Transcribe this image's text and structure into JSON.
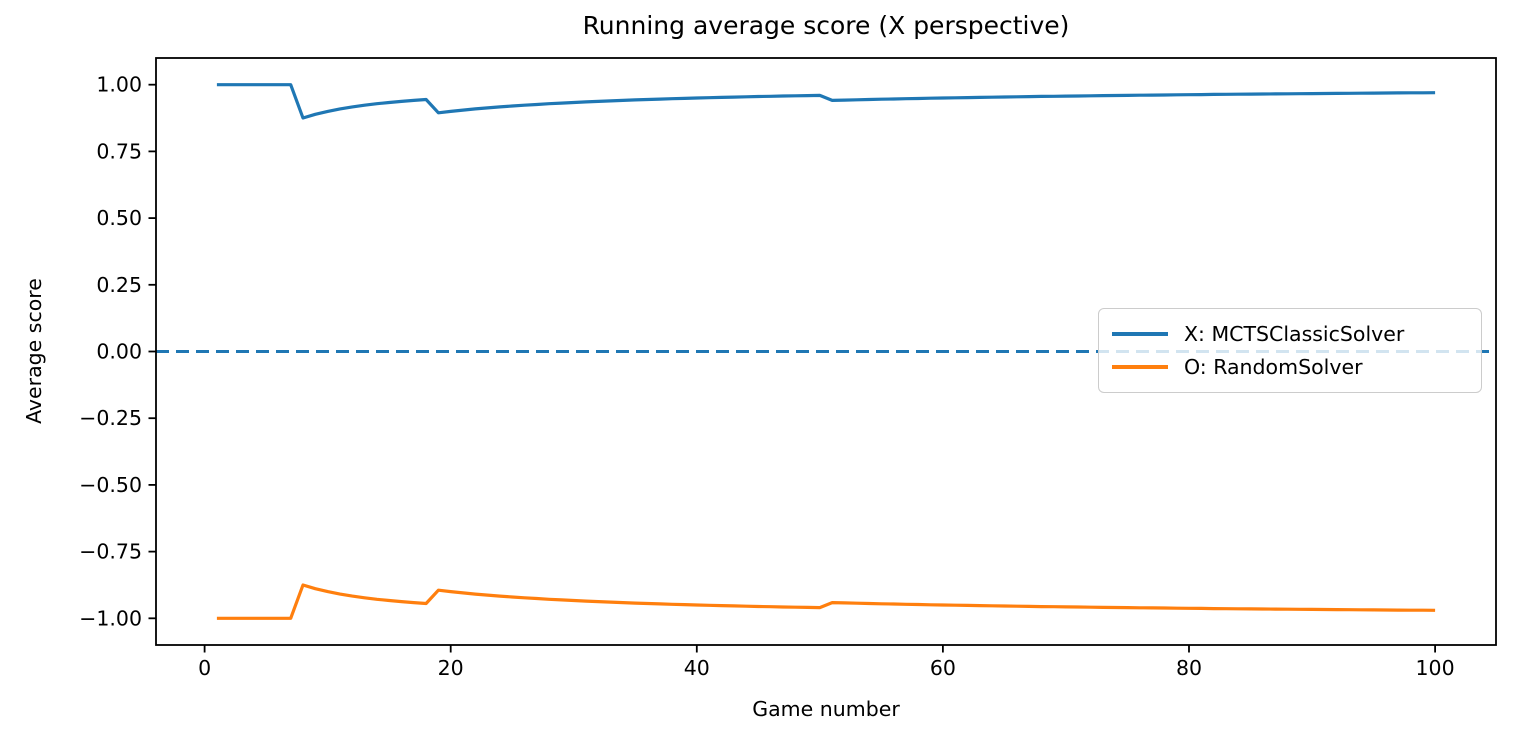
{
  "chart_data": {
    "type": "line",
    "title": "Running average score (X perspective)",
    "xlabel": "Game number",
    "ylabel": "Average score",
    "grid": false,
    "xlim": [
      -3.95,
      104.95
    ],
    "ylim": [
      -1.1,
      1.1
    ],
    "xticks": [
      0,
      20,
      40,
      60,
      80,
      100
    ],
    "xtick_labels": [
      "0",
      "20",
      "40",
      "60",
      "80",
      "100"
    ],
    "yticks": [
      1.0,
      0.75,
      0.5,
      0.25,
      0.0,
      -0.25,
      -0.5,
      -0.75,
      -1.0
    ],
    "ytick_labels": [
      "1.00",
      "0.75",
      "0.50",
      "0.25",
      "0.00",
      "−0.25",
      "−0.50",
      "−0.75",
      "−1.00"
    ],
    "zero_line": {
      "y": 0.0,
      "style": "dashed",
      "color": "#1f77b4"
    },
    "legend": {
      "position": "center right",
      "entries": [
        "X: MCTSClassicSolver",
        "O: RandomSolver"
      ]
    },
    "x": [
      1,
      2,
      3,
      4,
      5,
      6,
      7,
      8,
      9,
      10,
      11,
      12,
      13,
      14,
      15,
      16,
      17,
      18,
      19,
      20,
      21,
      22,
      23,
      24,
      25,
      26,
      27,
      28,
      29,
      30,
      31,
      32,
      33,
      34,
      35,
      36,
      37,
      38,
      39,
      40,
      41,
      42,
      43,
      44,
      45,
      46,
      47,
      48,
      49,
      50,
      51,
      52,
      53,
      54,
      55,
      56,
      57,
      58,
      59,
      60,
      61,
      62,
      63,
      64,
      65,
      66,
      67,
      68,
      69,
      70,
      71,
      72,
      73,
      74,
      75,
      76,
      77,
      78,
      79,
      80,
      81,
      82,
      83,
      84,
      85,
      86,
      87,
      88,
      89,
      90,
      91,
      92,
      93,
      94,
      95,
      96,
      97,
      98,
      99,
      100
    ],
    "series": [
      {
        "name": "X: MCTSClassicSolver",
        "color": "#1f77b4",
        "values": [
          1.0,
          1.0,
          1.0,
          1.0,
          1.0,
          1.0,
          1.0,
          0.875,
          0.8889,
          0.9,
          0.9091,
          0.9167,
          0.9231,
          0.9286,
          0.9333,
          0.9375,
          0.9412,
          0.9444,
          0.8947,
          0.9,
          0.9048,
          0.9091,
          0.913,
          0.9167,
          0.92,
          0.9231,
          0.9259,
          0.9286,
          0.931,
          0.9333,
          0.9355,
          0.9375,
          0.9394,
          0.9412,
          0.9429,
          0.9444,
          0.9459,
          0.9474,
          0.9487,
          0.95,
          0.9512,
          0.9524,
          0.9535,
          0.9545,
          0.9556,
          0.9565,
          0.9574,
          0.9583,
          0.9592,
          0.96,
          0.9412,
          0.9423,
          0.9434,
          0.9444,
          0.9455,
          0.9464,
          0.9474,
          0.9483,
          0.9492,
          0.95,
          0.9508,
          0.9516,
          0.9524,
          0.9531,
          0.9538,
          0.9545,
          0.9552,
          0.9559,
          0.9565,
          0.9571,
          0.9577,
          0.9583,
          0.9589,
          0.9595,
          0.96,
          0.9605,
          0.961,
          0.9615,
          0.962,
          0.9625,
          0.963,
          0.9634,
          0.9639,
          0.9643,
          0.9647,
          0.9651,
          0.9655,
          0.9659,
          0.9663,
          0.9667,
          0.967,
          0.9674,
          0.9677,
          0.9681,
          0.9684,
          0.9688,
          0.9691,
          0.9694,
          0.9697,
          0.97
        ]
      },
      {
        "name": "O: RandomSolver",
        "color": "#ff7f0e",
        "values": [
          -1.0,
          -1.0,
          -1.0,
          -1.0,
          -1.0,
          -1.0,
          -1.0,
          -0.875,
          -0.8889,
          -0.9,
          -0.9091,
          -0.9167,
          -0.9231,
          -0.9286,
          -0.9333,
          -0.9375,
          -0.9412,
          -0.9444,
          -0.8947,
          -0.9,
          -0.9048,
          -0.9091,
          -0.913,
          -0.9167,
          -0.92,
          -0.9231,
          -0.9259,
          -0.9286,
          -0.931,
          -0.9333,
          -0.9355,
          -0.9375,
          -0.9394,
          -0.9412,
          -0.9429,
          -0.9444,
          -0.9459,
          -0.9474,
          -0.9487,
          -0.95,
          -0.9512,
          -0.9524,
          -0.9535,
          -0.9545,
          -0.9556,
          -0.9565,
          -0.9574,
          -0.9583,
          -0.9592,
          -0.96,
          -0.9412,
          -0.9423,
          -0.9434,
          -0.9444,
          -0.9455,
          -0.9464,
          -0.9474,
          -0.9483,
          -0.9492,
          -0.95,
          -0.9508,
          -0.9516,
          -0.9524,
          -0.9531,
          -0.9538,
          -0.9545,
          -0.9552,
          -0.9559,
          -0.9565,
          -0.9571,
          -0.9577,
          -0.9583,
          -0.9589,
          -0.9595,
          -0.96,
          -0.9605,
          -0.961,
          -0.9615,
          -0.962,
          -0.9625,
          -0.963,
          -0.9634,
          -0.9639,
          -0.9643,
          -0.9647,
          -0.9651,
          -0.9655,
          -0.9659,
          -0.9663,
          -0.9667,
          -0.967,
          -0.9674,
          -0.9677,
          -0.9681,
          -0.9684,
          -0.9688,
          -0.9691,
          -0.9694,
          -0.9697,
          -0.97
        ]
      }
    ]
  }
}
